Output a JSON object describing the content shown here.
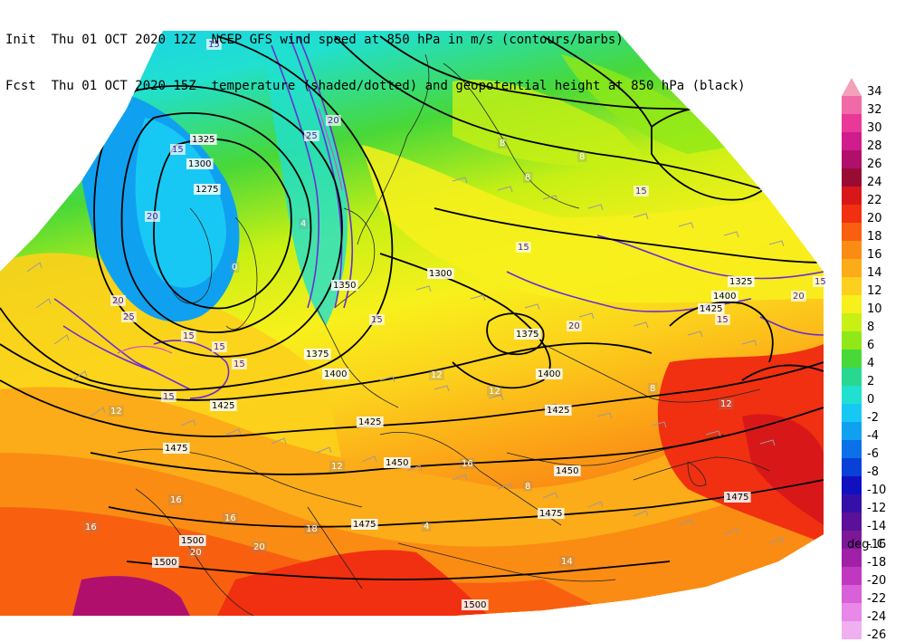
{
  "header": {
    "init_prefix": "Init",
    "init_time": "Thu 01 OCT 2020 12Z",
    "fcst_prefix": "Fcst",
    "fcst_time": "Thu 01 OCT 2020 15Z",
    "title_line1": "NCEP GFS wind speed at 850 hPa in m/s (contours/barbs)",
    "title_line2": "temperature (shaded/dotted) and geopotential height at 850 hPa (black)"
  },
  "legend": {
    "units": "deg. C",
    "entries": [
      {
        "label": "34",
        "color": "#f4a0b8"
      },
      {
        "label": "32",
        "color": "#f06aa8"
      },
      {
        "label": "30",
        "color": "#e83898"
      },
      {
        "label": "28",
        "color": "#d01c8c"
      },
      {
        "label": "26",
        "color": "#b0106c"
      },
      {
        "label": "24",
        "color": "#980c34"
      },
      {
        "label": "22",
        "color": "#d81818"
      },
      {
        "label": "20",
        "color": "#f03010"
      },
      {
        "label": "18",
        "color": "#f86010"
      },
      {
        "label": "16",
        "color": "#fa8c14"
      },
      {
        "label": "14",
        "color": "#fcac18"
      },
      {
        "label": "12",
        "color": "#fcd01c"
      },
      {
        "label": "10",
        "color": "#f8f01c"
      },
      {
        "label": "8",
        "color": "#c8f014"
      },
      {
        "label": "6",
        "color": "#90e818"
      },
      {
        "label": "4",
        "color": "#48d838"
      },
      {
        "label": "2",
        "color": "#28d890"
      },
      {
        "label": "0",
        "color": "#20e0d0"
      },
      {
        "label": "-2",
        "color": "#18c8f4"
      },
      {
        "label": "-4",
        "color": "#10a0f0"
      },
      {
        "label": "-6",
        "color": "#0c70e8"
      },
      {
        "label": "-8",
        "color": "#0840d8"
      },
      {
        "label": "-10",
        "color": "#1010c0"
      },
      {
        "label": "-12",
        "color": "#3410a8"
      },
      {
        "label": "-14",
        "color": "#5a1098"
      },
      {
        "label": "-16",
        "color": "#7c1898"
      },
      {
        "label": "-18",
        "color": "#a020a8"
      },
      {
        "label": "-20",
        "color": "#c038c0"
      },
      {
        "label": "-22",
        "color": "#d860d8"
      },
      {
        "label": "-24",
        "color": "#e888e8"
      },
      {
        "label": "-26",
        "color": "#f0b0f0"
      }
    ]
  },
  "map": {
    "height_labels": [
      "1325",
      "1300",
      "1275",
      "1350",
      "1375",
      "1375",
      "1400",
      "1400",
      "1425",
      "1425",
      "1425",
      "1450",
      "1450",
      "1475",
      "1475",
      "1475",
      "1475",
      "1500",
      "1500",
      "1325",
      "1400",
      "1425",
      "1300",
      "1500"
    ],
    "wind_labels": [
      "15",
      "20",
      "25",
      "20",
      "15",
      "20",
      "25",
      "15",
      "15",
      "15",
      "15",
      "15",
      "20",
      "15",
      "15",
      "20",
      "15",
      "15"
    ],
    "temperature_labels": [
      "0",
      "4",
      "8",
      "8",
      "8",
      "12",
      "12",
      "12",
      "16",
      "16",
      "20",
      "20",
      "14",
      "16",
      "18",
      "16",
      "12",
      "8",
      "4",
      "8",
      "12"
    ]
  }
}
